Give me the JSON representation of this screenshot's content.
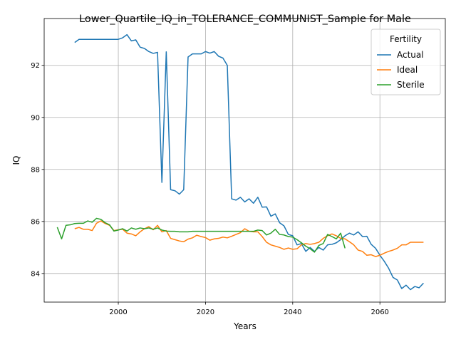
{
  "chart_data": {
    "type": "line",
    "title": "Lower_Quartile_IQ_in_TOLERANCE_COMMUNIST_Sample for Male",
    "xlabel": "Years",
    "ylabel": "IQ",
    "xlim": [
      1983,
      2075
    ],
    "ylim": [
      82.9,
      93.8
    ],
    "xticks": [
      2000,
      2020,
      2040,
      2060
    ],
    "yticks": [
      84,
      86,
      88,
      90,
      92
    ],
    "grid": true,
    "legend": {
      "title": "Fertility",
      "position": "top-right"
    },
    "series": [
      {
        "name": "Actual",
        "color": "#1f77b4",
        "x": [
          1990,
          1991,
          1992,
          1993,
          1994,
          1995,
          1996,
          1997,
          1998,
          1999,
          2000,
          2001,
          2002,
          2003,
          2004,
          2005,
          2006,
          2007,
          2008,
          2009,
          2010,
          2011,
          2012,
          2013,
          2014,
          2015,
          2016,
          2017,
          2018,
          2019,
          2020,
          2021,
          2022,
          2023,
          2024,
          2025,
          2026,
          2027,
          2028,
          2029,
          2030,
          2031,
          2032,
          2033,
          2034,
          2035,
          2036,
          2037,
          2038,
          2039,
          2040,
          2041,
          2042,
          2043,
          2044,
          2045,
          2046,
          2047,
          2048,
          2049,
          2050,
          2051,
          2052,
          2053,
          2054,
          2055,
          2056,
          2057,
          2058,
          2059,
          2060,
          2061,
          2062,
          2063,
          2064,
          2065,
          2066,
          2067,
          2068,
          2069,
          2070
        ],
        "y": [
          92.88,
          93.0,
          93.0,
          93.0,
          93.0,
          93.0,
          93.0,
          93.0,
          93.0,
          93.0,
          93.0,
          93.06,
          93.18,
          92.94,
          92.98,
          92.7,
          92.65,
          92.53,
          92.46,
          92.5,
          87.5,
          92.52,
          87.22,
          87.18,
          87.05,
          87.22,
          92.32,
          92.44,
          92.44,
          92.44,
          92.53,
          92.47,
          92.53,
          92.35,
          92.28,
          92.0,
          86.87,
          86.82,
          86.93,
          86.75,
          86.87,
          86.7,
          86.93,
          86.55,
          86.56,
          86.2,
          86.29,
          85.95,
          85.83,
          85.5,
          85.45,
          85.1,
          85.15,
          84.85,
          85.0,
          84.85,
          85.0,
          84.9,
          85.1,
          85.12,
          85.18,
          85.3,
          85.45,
          85.55,
          85.48,
          85.6,
          85.42,
          85.43,
          85.12,
          84.97,
          84.7,
          84.47,
          84.2,
          83.85,
          83.75,
          83.42,
          83.55,
          83.38,
          83.5,
          83.45,
          83.63
        ]
      },
      {
        "name": "Ideal",
        "color": "#ff7f0e",
        "x": [
          1990,
          1991,
          1992,
          1993,
          1994,
          1995,
          1996,
          1997,
          1998,
          1999,
          2000,
          2001,
          2002,
          2003,
          2004,
          2005,
          2006,
          2007,
          2008,
          2009,
          2010,
          2011,
          2012,
          2013,
          2014,
          2015,
          2016,
          2017,
          2018,
          2019,
          2020,
          2021,
          2022,
          2023,
          2024,
          2025,
          2026,
          2027,
          2028,
          2029,
          2030,
          2031,
          2032,
          2033,
          2034,
          2035,
          2036,
          2037,
          2038,
          2039,
          2040,
          2041,
          2042,
          2043,
          2044,
          2045,
          2046,
          2047,
          2048,
          2049,
          2050,
          2051,
          2052,
          2053,
          2054,
          2055,
          2056,
          2057,
          2058,
          2059,
          2060,
          2061,
          2062,
          2063,
          2064,
          2065,
          2066,
          2067,
          2068,
          2069,
          2070
        ],
        "y": [
          85.72,
          85.77,
          85.7,
          85.7,
          85.65,
          85.93,
          86.02,
          85.92,
          85.85,
          85.65,
          85.68,
          85.7,
          85.55,
          85.52,
          85.45,
          85.6,
          85.72,
          85.8,
          85.68,
          85.85,
          85.6,
          85.65,
          85.35,
          85.3,
          85.25,
          85.22,
          85.32,
          85.37,
          85.47,
          85.42,
          85.38,
          85.28,
          85.33,
          85.35,
          85.4,
          85.37,
          85.43,
          85.5,
          85.57,
          85.72,
          85.62,
          85.6,
          85.6,
          85.42,
          85.2,
          85.1,
          85.05,
          85.0,
          84.93,
          84.98,
          84.93,
          84.95,
          85.1,
          85.15,
          85.12,
          85.15,
          85.2,
          85.35,
          85.45,
          85.52,
          85.45,
          85.35,
          85.33,
          85.22,
          85.1,
          84.9,
          84.85,
          84.7,
          84.72,
          84.65,
          84.7,
          84.78,
          84.85,
          84.9,
          84.97,
          85.1,
          85.1,
          85.2,
          85.2,
          85.2,
          85.2
        ]
      },
      {
        "name": "Sterile",
        "color": "#2ca02c",
        "x": [
          1986,
          1987,
          1988,
          1989,
          1990,
          1991,
          1992,
          1993,
          1994,
          1995,
          1996,
          1997,
          1998,
          1999,
          2000,
          2001,
          2002,
          2003,
          2004,
          2005,
          2006,
          2007,
          2008,
          2009,
          2010,
          2011,
          2012,
          2013,
          2014,
          2015,
          2016,
          2017,
          2018,
          2019,
          2020,
          2021,
          2022,
          2023,
          2024,
          2025,
          2026,
          2027,
          2028,
          2029,
          2030,
          2031,
          2032,
          2033,
          2034,
          2035,
          2036,
          2037,
          2038,
          2039,
          2040,
          2041,
          2042,
          2043,
          2044,
          2045,
          2046,
          2047,
          2048,
          2049,
          2050,
          2051,
          2052
        ],
        "y": [
          85.78,
          85.33,
          85.85,
          85.87,
          85.92,
          85.93,
          85.93,
          86.02,
          85.97,
          86.12,
          86.08,
          85.95,
          85.87,
          85.63,
          85.67,
          85.72,
          85.63,
          85.75,
          85.7,
          85.75,
          85.72,
          85.75,
          85.7,
          85.75,
          85.67,
          85.63,
          85.62,
          85.62,
          85.6,
          85.6,
          85.6,
          85.62,
          85.62,
          85.62,
          85.62,
          85.62,
          85.62,
          85.62,
          85.62,
          85.62,
          85.62,
          85.62,
          85.62,
          85.62,
          85.62,
          85.62,
          85.67,
          85.65,
          85.48,
          85.55,
          85.7,
          85.5,
          85.48,
          85.42,
          85.4,
          85.3,
          85.18,
          85.05,
          84.95,
          84.82,
          85.08,
          85.15,
          85.5,
          85.42,
          85.33,
          85.55,
          84.97
        ]
      }
    ]
  }
}
